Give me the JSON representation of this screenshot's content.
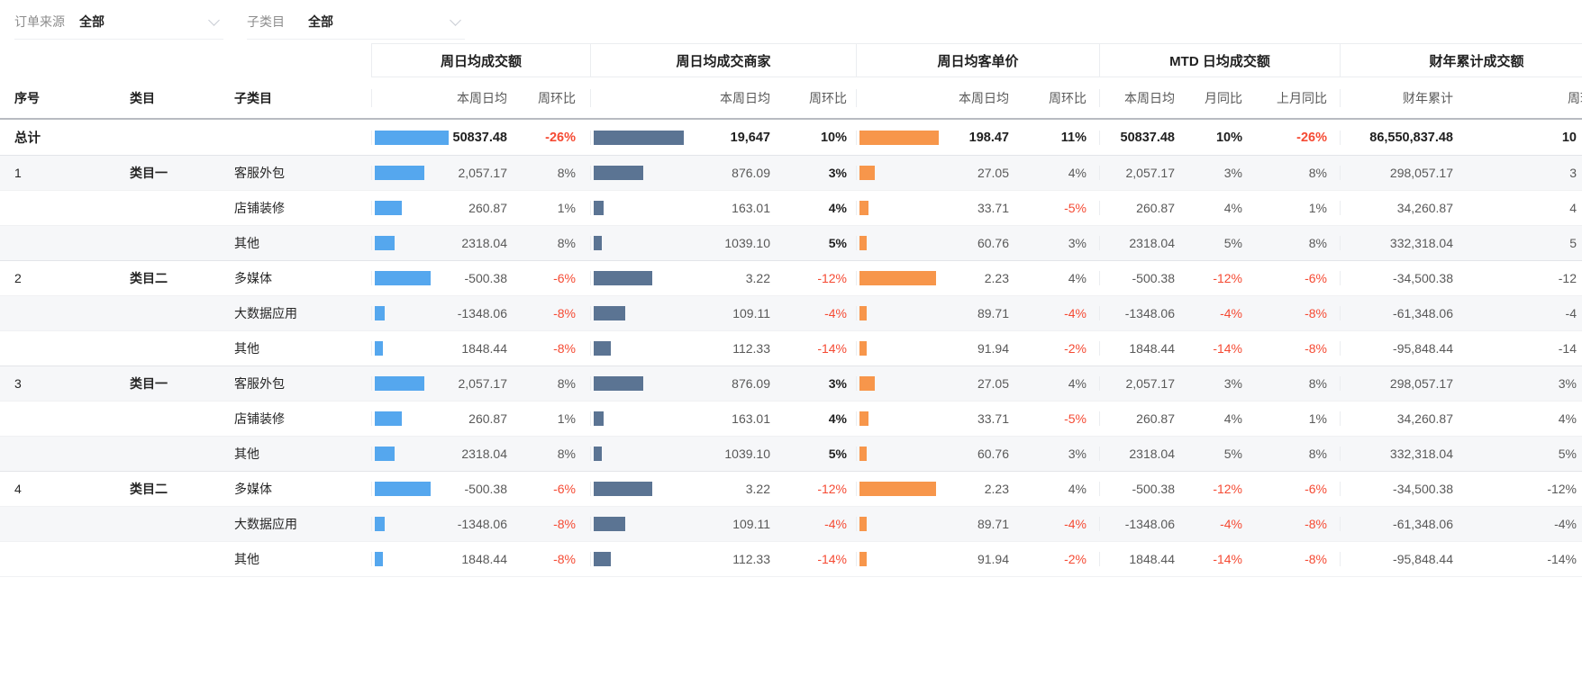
{
  "filters": [
    {
      "label": "订单来源",
      "value": "全部"
    },
    {
      "label": "子类目",
      "value": "全部"
    }
  ],
  "table": {
    "fixed_headers": [
      "序号",
      "类目",
      "子类目"
    ],
    "groups": [
      {
        "title": "周日均成交额",
        "cols": [
          "本周日均",
          "周环比"
        ]
      },
      {
        "title": "周日均成交商家",
        "cols": [
          "本周日均",
          "周环比"
        ]
      },
      {
        "title": "周日均客单价",
        "cols": [
          "本周日均",
          "周环比"
        ]
      },
      {
        "title": "MTD 日均成交额",
        "cols": [
          "本周日均",
          "月同比",
          "上月同比"
        ]
      },
      {
        "title": "财年累计成交额",
        "cols": [
          "财年累计",
          "周环比"
        ]
      }
    ],
    "colors": {
      "bar_blue": "#55a7ee",
      "bar_slate": "#5b7493",
      "bar_orange": "#f7964b",
      "negative": "#f54a33",
      "text": "#595959",
      "strong": "#1f1f1f",
      "stripe": "#f6f7f9"
    },
    "total_row": {
      "seq": "总计",
      "cat": "",
      "subcat": "",
      "amt_bar": 82,
      "amt": "50837.48",
      "amt_pct": "-26%",
      "mch_bar": 100,
      "mch": "19,647",
      "mch_pct": "10%",
      "price_bar": 88,
      "price": "198.47",
      "price_pct": "11%",
      "mtd": "50837.48",
      "mtd_mom": "10%",
      "mtd_lmom": "-26%",
      "fy": "86,550,837.48",
      "fy_wow": "10"
    },
    "rows": [
      {
        "seq": "1",
        "cat": "类目一",
        "subcat": "客服外包",
        "amt_bar": 55,
        "amt": "2,057.17",
        "amt_pct": "8%",
        "mch_bar": 55,
        "mch": "876.09",
        "mch_pct": "3%",
        "price_bar": 17,
        "price": "27.05",
        "price_pct": "4%",
        "mtd": "2,057.17",
        "mtd_mom": "3%",
        "mtd_lmom": "8%",
        "fy": "298,057.17",
        "fy_wow": "3"
      },
      {
        "seq": "",
        "cat": "",
        "subcat": "店铺装修",
        "amt_bar": 30,
        "amt": "260.87",
        "amt_pct": "1%",
        "mch_bar": 11,
        "mch": "163.01",
        "mch_pct": "4%",
        "price_bar": 10,
        "price": "33.71",
        "price_pct": "-5%",
        "mtd": "260.87",
        "mtd_mom": "4%",
        "mtd_lmom": "1%",
        "fy": "34,260.87",
        "fy_wow": "4"
      },
      {
        "seq": "",
        "cat": "",
        "subcat": "其他",
        "amt_bar": 22,
        "amt": "2318.04",
        "amt_pct": "8%",
        "mch_bar": 9,
        "mch": "1039.10",
        "mch_pct": "5%",
        "price_bar": 8,
        "price": "60.76",
        "price_pct": "3%",
        "mtd": "2318.04",
        "mtd_mom": "5%",
        "mtd_lmom": "8%",
        "fy": "332,318.04",
        "fy_wow": "5"
      },
      {
        "seq": "2",
        "cat": "类目二",
        "subcat": "多媒体",
        "amt_bar": 62,
        "amt": "-500.38",
        "amt_pct": "-6%",
        "mch_bar": 65,
        "mch": "3.22",
        "mch_pct": "-12%",
        "price_bar": 85,
        "price": "2.23",
        "price_pct": "4%",
        "mtd": "-500.38",
        "mtd_mom": "-12%",
        "mtd_lmom": "-6%",
        "fy": "-34,500.38",
        "fy_wow": "-12"
      },
      {
        "seq": "",
        "cat": "",
        "subcat": "大数据应用",
        "amt_bar": 11,
        "amt": "-1348.06",
        "amt_pct": "-8%",
        "mch_bar": 35,
        "mch": "109.11",
        "mch_pct": "-4%",
        "price_bar": 8,
        "price": "89.71",
        "price_pct": "-4%",
        "mtd": "-1348.06",
        "mtd_mom": "-4%",
        "mtd_lmom": "-8%",
        "fy": "-61,348.06",
        "fy_wow": "-4"
      },
      {
        "seq": "",
        "cat": "",
        "subcat": "其他",
        "amt_bar": 9,
        "amt": "1848.44",
        "amt_pct": "-8%",
        "mch_bar": 19,
        "mch": "112.33",
        "mch_pct": "-14%",
        "price_bar": 8,
        "price": "91.94",
        "price_pct": "-2%",
        "mtd": "1848.44",
        "mtd_mom": "-14%",
        "mtd_lmom": "-8%",
        "fy": "-95,848.44",
        "fy_wow": "-14"
      },
      {
        "seq": "3",
        "cat": "类目一",
        "subcat": "客服外包",
        "amt_bar": 55,
        "amt": "2,057.17",
        "amt_pct": "8%",
        "mch_bar": 55,
        "mch": "876.09",
        "mch_pct": "3%",
        "price_bar": 17,
        "price": "27.05",
        "price_pct": "4%",
        "mtd": "2,057.17",
        "mtd_mom": "3%",
        "mtd_lmom": "8%",
        "fy": "298,057.17",
        "fy_wow": "3%"
      },
      {
        "seq": "",
        "cat": "",
        "subcat": "店铺装修",
        "amt_bar": 30,
        "amt": "260.87",
        "amt_pct": "1%",
        "mch_bar": 11,
        "mch": "163.01",
        "mch_pct": "4%",
        "price_bar": 10,
        "price": "33.71",
        "price_pct": "-5%",
        "mtd": "260.87",
        "mtd_mom": "4%",
        "mtd_lmom": "1%",
        "fy": "34,260.87",
        "fy_wow": "4%"
      },
      {
        "seq": "",
        "cat": "",
        "subcat": "其他",
        "amt_bar": 22,
        "amt": "2318.04",
        "amt_pct": "8%",
        "mch_bar": 9,
        "mch": "1039.10",
        "mch_pct": "5%",
        "price_bar": 8,
        "price": "60.76",
        "price_pct": "3%",
        "mtd": "2318.04",
        "mtd_mom": "5%",
        "mtd_lmom": "8%",
        "fy": "332,318.04",
        "fy_wow": "5%"
      },
      {
        "seq": "4",
        "cat": "类目二",
        "subcat": "多媒体",
        "amt_bar": 62,
        "amt": "-500.38",
        "amt_pct": "-6%",
        "mch_bar": 65,
        "mch": "3.22",
        "mch_pct": "-12%",
        "price_bar": 85,
        "price": "2.23",
        "price_pct": "4%",
        "mtd": "-500.38",
        "mtd_mom": "-12%",
        "mtd_lmom": "-6%",
        "fy": "-34,500.38",
        "fy_wow": "-12%"
      },
      {
        "seq": "",
        "cat": "",
        "subcat": "大数据应用",
        "amt_bar": 11,
        "amt": "-1348.06",
        "amt_pct": "-8%",
        "mch_bar": 35,
        "mch": "109.11",
        "mch_pct": "-4%",
        "price_bar": 8,
        "price": "89.71",
        "price_pct": "-4%",
        "mtd": "-1348.06",
        "mtd_mom": "-4%",
        "mtd_lmom": "-8%",
        "fy": "-61,348.06",
        "fy_wow": "-4%"
      },
      {
        "seq": "",
        "cat": "",
        "subcat": "其他",
        "amt_bar": 9,
        "amt": "1848.44",
        "amt_pct": "-8%",
        "mch_bar": 19,
        "mch": "112.33",
        "mch_pct": "-14%",
        "price_bar": 8,
        "price": "91.94",
        "price_pct": "-2%",
        "mtd": "1848.44",
        "mtd_mom": "-14%",
        "mtd_lmom": "-8%",
        "fy": "-95,848.44",
        "fy_wow": "-14%"
      }
    ]
  }
}
